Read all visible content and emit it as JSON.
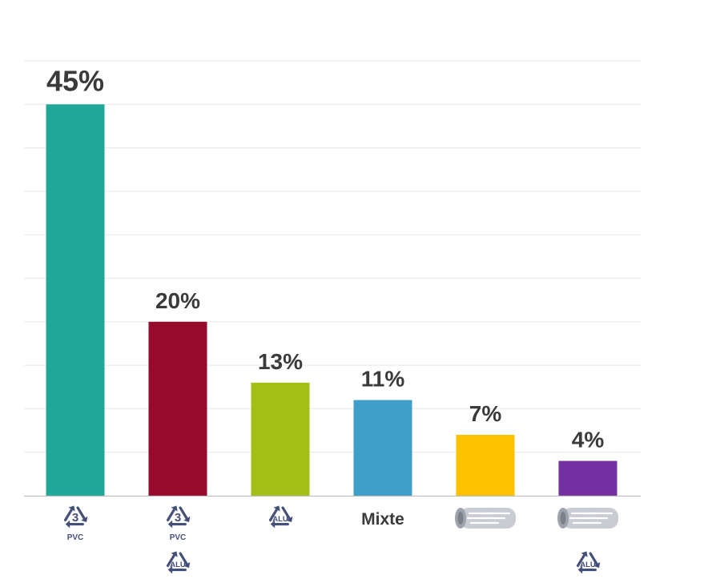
{
  "chart_data": {
    "type": "bar",
    "categories": [
      {
        "icons": [
          "recycle-pvc-3"
        ],
        "text": "",
        "icon_labels": [
          "3",
          "PVC"
        ]
      },
      {
        "icons": [
          "recycle-pvc-3",
          "recycle-alu"
        ],
        "text": "",
        "icon_labels": [
          "3",
          "PVC",
          "ALU"
        ]
      },
      {
        "icons": [
          "recycle-alu"
        ],
        "text": "",
        "icon_labels": [
          "ALU"
        ]
      },
      {
        "icons": [],
        "text": "Mixte",
        "icon_labels": []
      },
      {
        "icons": [
          "wooden-log"
        ],
        "text": "",
        "icon_labels": []
      },
      {
        "icons": [
          "wooden-log",
          "recycle-alu"
        ],
        "text": "",
        "icon_labels": [
          "ALU"
        ]
      }
    ],
    "values": [
      45,
      20,
      13,
      11,
      7,
      4
    ],
    "value_labels": [
      "45%",
      "20%",
      "13%",
      "11%",
      "7%",
      "4%"
    ],
    "colors": [
      "#1fa898",
      "#970a2c",
      "#a3be15",
      "#3f9fc8",
      "#fdc100",
      "#7230a0"
    ],
    "ylim": [
      0,
      50
    ],
    "grid": true,
    "title": "",
    "xlabel": "",
    "ylabel": ""
  },
  "colors": {
    "grid": "#ececec",
    "axis": "#bfbfbf",
    "icon": "#45507a",
    "text": "#3a3a3a"
  }
}
